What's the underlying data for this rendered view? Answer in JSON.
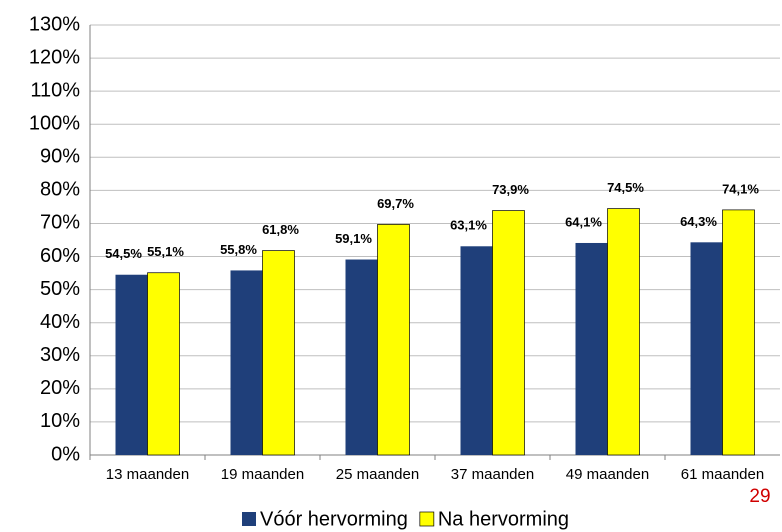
{
  "chart_data": {
    "type": "bar",
    "categories": [
      "13 maanden",
      "19 maanden",
      "25 maanden",
      "37 maanden",
      "49 maanden",
      "61 maanden"
    ],
    "series": [
      {
        "name": "Vóór hervorming",
        "color": "#1f3f7a",
        "values": [
          54.5,
          55.8,
          59.1,
          63.1,
          64.1,
          64.3
        ],
        "value_labels": [
          "54,5%",
          "55,8%",
          "59,1%",
          "63,1%",
          "64,1%",
          "64,3%"
        ]
      },
      {
        "name": "Na hervorming",
        "color": "#ffff00",
        "values": [
          55.1,
          61.8,
          69.7,
          73.9,
          74.5,
          74.1
        ],
        "value_labels": [
          "55,1%",
          "61,8%",
          "69,7%",
          "73,9%",
          "74,5%",
          "74,1%"
        ]
      }
    ],
    "ylim": [
      0,
      130
    ],
    "yticks": [
      {
        "value": 0,
        "label": "0%"
      },
      {
        "value": 10,
        "label": "10%"
      },
      {
        "value": 20,
        "label": "20%"
      },
      {
        "value": 30,
        "label": "30%"
      },
      {
        "value": 40,
        "label": "40%"
      },
      {
        "value": 50,
        "label": "50%"
      },
      {
        "value": 60,
        "label": "60%"
      },
      {
        "value": 70,
        "label": "70%"
      },
      {
        "value": 80,
        "label": "80%"
      },
      {
        "value": 90,
        "label": "90%"
      },
      {
        "value": 100,
        "label": "100%"
      },
      {
        "value": 110,
        "label": "110%"
      },
      {
        "value": 120,
        "label": "120%"
      },
      {
        "value": 130,
        "label": "130%"
      }
    ],
    "grid": true,
    "legend": "bottom",
    "page_number": "29"
  }
}
